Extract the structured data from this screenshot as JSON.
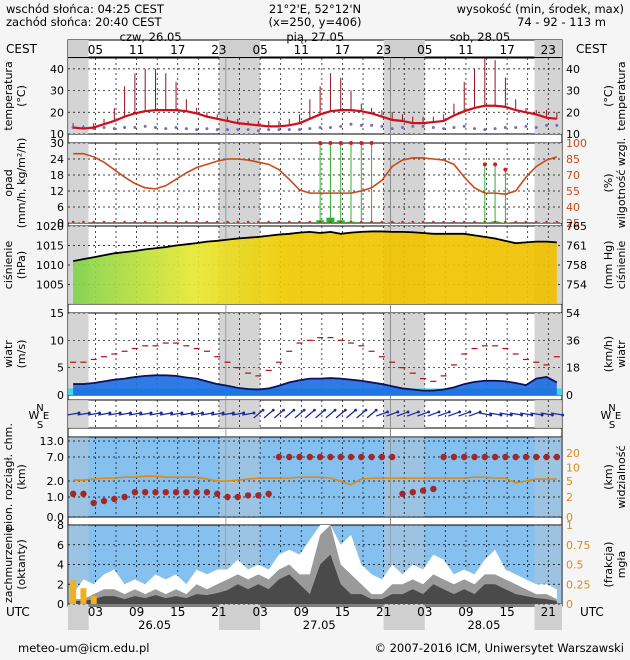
{
  "header": {
    "sunrise": "wschód słońca: 04:25 CEST",
    "sunset": "zachód słońca: 20:40 CEST",
    "coords": "21°2'E, 52°12'N",
    "grid": "(x=250,  y=406)",
    "elev_label": "wysokość (min, środek, max)",
    "elev_values": "74 - 92 - 113 m"
  },
  "time_axis": {
    "top_tz": "CEST",
    "bottom_tz": "UTC",
    "day_labels": [
      "czw, 26.05",
      "pią, 27.05",
      "sob, 28.05"
    ],
    "cest_hours": [
      "05",
      "11",
      "17",
      "23",
      "05",
      "11",
      "17",
      "23",
      "05",
      "11",
      "17",
      "23"
    ],
    "utc_hours": [
      "03",
      "09",
      "15",
      "21",
      "03",
      "09",
      "15",
      "21",
      "03",
      "09",
      "15",
      "21"
    ],
    "utc_dates": [
      "26.05",
      "27.05",
      "28.05"
    ]
  },
  "panels": {
    "temperature": {
      "left": [
        "temperatura",
        "(°C)"
      ],
      "right": [
        "(°C)",
        "temperatura"
      ]
    },
    "precip": {
      "left": [
        "opad",
        "(mm/h, kg/m²/h)"
      ],
      "right": [
        "(%)",
        "wilgotność wzgl."
      ]
    },
    "pressure": {
      "left": [
        "ciśnienie",
        "(hPa)"
      ],
      "right": [
        "(mm Hg)",
        "ciśnienie"
      ]
    },
    "wind": {
      "left": [
        "wiatr",
        "(m/s)"
      ],
      "right": [
        "(km/h)",
        "wiatr"
      ]
    },
    "direction": {
      "letters": [
        "N",
        "W",
        "E",
        "S"
      ]
    },
    "visibility": {
      "left": [
        "pion. rozciągł. chm.",
        "(km)"
      ],
      "right": [
        "(km)",
        "widzialność"
      ]
    },
    "cloud": {
      "left": [
        "zachmurzenie",
        "(oktanty)"
      ],
      "right": [
        "(frakcja)",
        "mgła"
      ]
    }
  },
  "chart_data": [
    {
      "type": "line",
      "name": "temperatura",
      "x_hours_step": 2,
      "ylim": [
        10,
        45
      ],
      "yticks": [
        10,
        20,
        30,
        40
      ],
      "y2ticks": [
        10,
        20,
        30,
        40
      ],
      "temperature": [
        13,
        12.5,
        13,
        14.5,
        16,
        18,
        19.5,
        20.5,
        21,
        21,
        21,
        20.5,
        19.5,
        18,
        17,
        16,
        15,
        14.5,
        14,
        13.5,
        13.5,
        14,
        15,
        17,
        19,
        20.5,
        21,
        21,
        20.5,
        19.5,
        18,
        16.5,
        16,
        15,
        15,
        15.5,
        16,
        18.5,
        20.5,
        22,
        23,
        23,
        22.5,
        21,
        20,
        19,
        17.5,
        17
      ],
      "temp_max_bars": [
        15,
        14,
        15,
        17,
        22,
        32,
        38,
        40,
        40,
        38,
        34,
        26,
        22,
        20,
        19,
        18,
        17,
        16,
        16,
        16,
        16,
        17,
        19,
        26,
        32,
        38,
        36,
        30,
        24,
        22,
        21,
        20,
        19,
        18,
        18,
        18,
        19,
        24,
        34,
        40,
        45,
        44,
        36,
        26,
        22,
        21,
        21,
        20
      ],
      "dew_points": [
        13,
        13,
        12.5,
        13,
        12.5,
        13,
        13,
        13.5,
        13,
        12.5,
        13,
        12.5,
        12,
        12.5,
        12,
        12,
        12,
        12,
        11.5,
        12,
        12,
        12,
        12,
        12.5,
        13,
        13,
        13.5,
        14.5,
        14,
        14,
        13.5,
        12.5,
        13,
        13.5,
        13.5,
        13,
        12.5,
        13,
        13.5,
        12.5,
        12,
        12.5,
        13,
        13,
        13.5,
        13,
        14,
        14
      ]
    },
    {
      "type": "line",
      "name": "opad / wilgotność",
      "ylim": [
        0,
        30
      ],
      "yticks": [
        0,
        6,
        12,
        18,
        24,
        30
      ],
      "y2ticks": [
        25,
        40,
        55,
        70,
        85,
        100
      ],
      "humidity": [
        90,
        90,
        87,
        82,
        75,
        68,
        62,
        58,
        57,
        60,
        66,
        72,
        77,
        80,
        83,
        85,
        85,
        84,
        82,
        80,
        75,
        66,
        56,
        53,
        53,
        53,
        53,
        53,
        55,
        58,
        65,
        78,
        84,
        86,
        86,
        85,
        84,
        80,
        68,
        58,
        53,
        53,
        52,
        55,
        68,
        78,
        84,
        87
      ],
      "precip_values": [
        0.1,
        0,
        0,
        0.05,
        0.05,
        0,
        0,
        0,
        0,
        0,
        0,
        0,
        0,
        0,
        0,
        0,
        0,
        0,
        0,
        0,
        0,
        0,
        0,
        0,
        1,
        2,
        1,
        0.5,
        0,
        0,
        0,
        0,
        0,
        0,
        0,
        0,
        0,
        0,
        0,
        0,
        0.3,
        0.6,
        0.2,
        0,
        0,
        0,
        0,
        0
      ],
      "ensemble_max": [
        0,
        0,
        0,
        0,
        0,
        0,
        0,
        0,
        0,
        0,
        0,
        0,
        0,
        0,
        0,
        0,
        0,
        0,
        0,
        0,
        0,
        0,
        0,
        0,
        30,
        30,
        30,
        30,
        30,
        30,
        0,
        0,
        0,
        0,
        0,
        0,
        0,
        0,
        0,
        0,
        22,
        22,
        20,
        0,
        0,
        0,
        0,
        0
      ]
    },
    {
      "type": "area",
      "name": "ciśnienie",
      "ylim": [
        1000,
        1020
      ],
      "yticks": [
        1005,
        1010,
        1015,
        1020
      ],
      "y2ticks": [
        754,
        758,
        761,
        765
      ],
      "pressure": [
        1011,
        1011.5,
        1012,
        1012.5,
        1013,
        1013.3,
        1013.6,
        1014,
        1014.3,
        1014.6,
        1015,
        1015.3,
        1015.6,
        1016,
        1016.2,
        1016.5,
        1016.8,
        1017,
        1017.2,
        1017.5,
        1017.8,
        1018,
        1018.3,
        1018.5,
        1018.2,
        1018.5,
        1018,
        1018.3,
        1018.5,
        1018.6,
        1018.6,
        1018.5,
        1018.5,
        1018.4,
        1018.2,
        1018,
        1018,
        1018,
        1018,
        1017.6,
        1017.2,
        1016.8,
        1016.2,
        1015.6,
        1015.8,
        1016,
        1016,
        1015.8
      ]
    },
    {
      "type": "line",
      "name": "wiatr",
      "ylim": [
        0,
        15
      ],
      "yticks": [
        0,
        5,
        10,
        15
      ],
      "y2ticks": [
        0,
        18,
        36,
        54
      ],
      "gusts": [
        6,
        6,
        6.5,
        7,
        7.5,
        8,
        8.5,
        9,
        9,
        9.5,
        9.5,
        9,
        8.5,
        8,
        7,
        6,
        5,
        4,
        3.5,
        4.5,
        6,
        8,
        9.5,
        10,
        10.5,
        10.5,
        10,
        9.5,
        9,
        8,
        7,
        6,
        5,
        4,
        3,
        2.5,
        3.5,
        5.5,
        7.5,
        8.5,
        9,
        9,
        8.5,
        7.5,
        6.5,
        6,
        5.5,
        7
      ],
      "wind_speed": [
        2,
        2,
        2.2,
        2.5,
        2.8,
        3,
        3.3,
        3.5,
        3.6,
        3.6,
        3.5,
        3.2,
        3,
        2.5,
        2,
        1.7,
        1.3,
        1.1,
        1,
        1.2,
        1.7,
        2.3,
        2.7,
        3,
        3,
        3.1,
        3,
        2.8,
        2.6,
        2.3,
        2,
        1.6,
        1.2,
        1,
        0.8,
        0.8,
        1,
        1.4,
        2,
        2.4,
        2.6,
        2.6,
        2.5,
        2.2,
        1.8,
        3,
        3.3,
        2.3
      ]
    },
    {
      "type": "scatter",
      "name": "widzialność",
      "ylim": [
        0,
        15
      ],
      "yticks": [
        0,
        1,
        2,
        7,
        13
      ],
      "ytick_labels": [
        "0.0",
        "1.0",
        "2.0",
        "7.0",
        "13.0"
      ],
      "y2ticks": [
        0,
        2,
        5,
        10,
        20
      ],
      "cloud_base": [
        1.2,
        1.2,
        0.7,
        0.8,
        0.9,
        1.0,
        1.3,
        1.3,
        1.3,
        1.3,
        1.3,
        1.3,
        1.3,
        1.3,
        1.2,
        1.0,
        1.0,
        1.1,
        1.1,
        1.2,
        7.0,
        7.0,
        7.0,
        7.0,
        7.0,
        7.0,
        7.0,
        7.0,
        7.0,
        7.0,
        7.0,
        7.0,
        1.2,
        1.3,
        1.4,
        1.5,
        7.0,
        7.0,
        7.0,
        7.0,
        7.0,
        7.0,
        7.0,
        7.0,
        7.0,
        7.0,
        7.0,
        7.0
      ],
      "visibility": [
        1.1,
        1.1,
        1.2,
        1.3,
        1.3,
        1.4,
        1.4,
        1.5,
        1.5,
        1.4,
        1.4,
        1.4,
        1.4,
        1.2,
        1.0,
        1.0,
        1.1,
        1.2,
        1.3,
        1.3,
        1.3,
        1.3,
        1.4,
        1.4,
        1.4,
        1.3,
        1.0,
        0.6,
        1.2,
        1.3,
        1.3,
        1.3,
        1.3,
        1.3,
        1.3,
        1.3,
        1.3,
        1.3,
        1.3,
        1.4,
        1.4,
        1.3,
        1.3,
        0.8,
        1.0,
        1.2,
        1.2,
        1.2
      ]
    },
    {
      "type": "area",
      "name": "zachmurzenie",
      "ylim": [
        0,
        8
      ],
      "yticks": [
        0,
        2,
        4,
        6,
        8
      ],
      "y2ticks": [
        0,
        0.25,
        0.5,
        0.75,
        1
      ],
      "total_cloud": [
        1,
        2.5,
        2,
        3,
        3.5,
        2,
        2.5,
        2,
        3,
        2.5,
        3,
        2,
        3.5,
        3,
        3.5,
        3.5,
        4.5,
        3.5,
        4,
        3.5,
        5,
        5.5,
        5,
        6.5,
        8,
        8,
        6,
        7,
        4,
        3,
        2.5,
        4,
        3,
        4,
        3.5,
        5,
        4.5,
        3,
        3.5,
        3,
        4.5,
        5.5,
        3.5,
        3,
        2.5,
        2,
        2,
        1.5
      ],
      "mid_cloud": [
        0.5,
        0.5,
        1,
        1.5,
        1.5,
        1,
        1.5,
        1,
        1.5,
        1,
        1.5,
        1,
        2,
        1.5,
        2,
        2.5,
        3,
        2.5,
        3,
        2.5,
        3.5,
        4,
        3,
        3,
        7,
        8,
        4,
        3,
        2,
        1,
        1,
        2,
        2,
        2.5,
        2,
        3,
        2.5,
        2,
        2.5,
        2,
        3,
        3,
        2.5,
        2,
        1.5,
        1,
        1,
        0.5
      ],
      "low_cloud": [
        0.3,
        0.3,
        0.5,
        0.8,
        0.8,
        0.5,
        0.8,
        0.6,
        0.9,
        0.6,
        0.8,
        0.6,
        1,
        0.9,
        1.1,
        1.4,
        2,
        1.5,
        2,
        1.5,
        2.5,
        3,
        2,
        1,
        4,
        5,
        2,
        1,
        1,
        0.5,
        0.5,
        1,
        1,
        1.5,
        1,
        2,
        1.5,
        1,
        1.5,
        1,
        2,
        2,
        1.5,
        1,
        0.8,
        0.6,
        0.5,
        0.3
      ],
      "fog": [
        0.3,
        0.2,
        0.1,
        0,
        0,
        0,
        0,
        0,
        0,
        0,
        0,
        0,
        0,
        0,
        0,
        0,
        0,
        0,
        0,
        0,
        0,
        0,
        0,
        0,
        0,
        0,
        0,
        0,
        0,
        0,
        0,
        0,
        0,
        0,
        0,
        0,
        0,
        0,
        0,
        0,
        0,
        0,
        0,
        0,
        0,
        0,
        0,
        0
      ]
    }
  ],
  "footer": {
    "email": "meteo-um@icm.edu.pl",
    "copyright": "© 2007-2016 ICM, Uniwersytet Warszawski"
  },
  "colors": {
    "temperature_line": "#cc1020",
    "temp_bars": "#99101e",
    "dew_points": "#7070c0",
    "humidity_line": "#c84a1a",
    "precip_bar": "#30b030",
    "pressure_line": "#000000",
    "gusts": "#b01010",
    "wind_fill": "#1a6be0",
    "visibility_line": "#e08a10",
    "cloud_base": "#a02828",
    "plot_bg_shade": "#cfcfcf",
    "vis_bg": "#85c0ef",
    "cloud_bg": "#85c0ef"
  }
}
